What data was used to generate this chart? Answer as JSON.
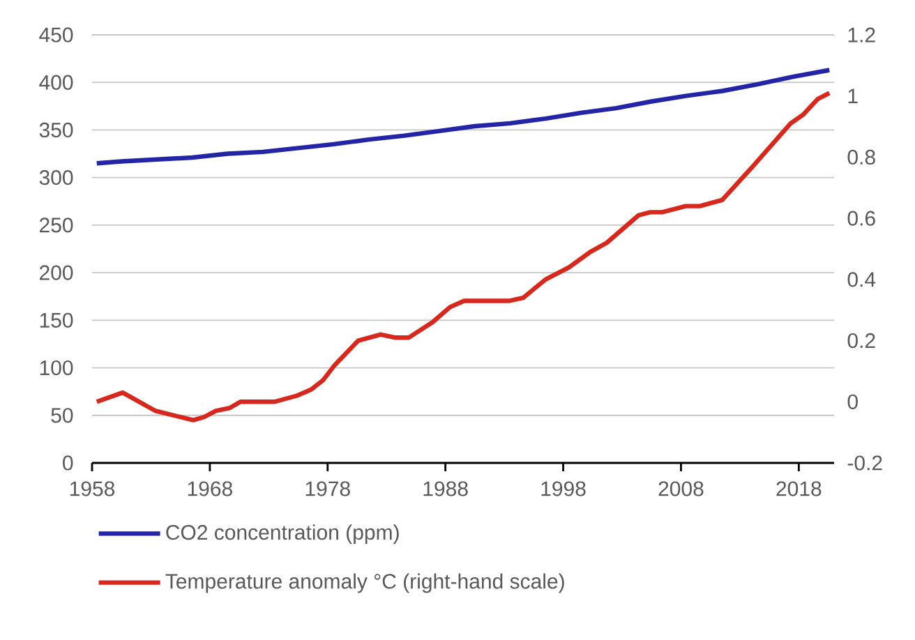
{
  "chart_data": {
    "type": "line",
    "xlim": [
      1958,
      2021
    ],
    "xticks": [
      1958,
      1968,
      1978,
      1988,
      1998,
      2008,
      2018
    ],
    "ylim": [
      0,
      450
    ],
    "yticks": [
      0,
      50,
      100,
      150,
      200,
      250,
      300,
      350,
      400,
      450
    ],
    "y2lim": [
      -0.2,
      1.2
    ],
    "y2ticks": [
      -0.2,
      0,
      0.2,
      0.4,
      0.6,
      0.8,
      1,
      1.2
    ],
    "grid": "y",
    "legend": "bottom",
    "marker": "none",
    "line_style": "solid",
    "series": [
      {
        "name": "CO2 concentration (ppm)",
        "color": "#2424a6",
        "x": [
          1958.4,
          1960.5,
          1963.5,
          1966.5,
          1969.5,
          1972.5,
          1975.5,
          1978.5,
          1981.5,
          1984.5,
          1987.5,
          1990.5,
          1993.5,
          1996.5,
          1999.5,
          2002.5,
          2005.5,
          2008.5,
          2011.5,
          2014.5,
          2017.5,
          2020.6
        ],
        "values": [
          315,
          317,
          319,
          321,
          325,
          327,
          331,
          335,
          340,
          344,
          349,
          354,
          357,
          362,
          368,
          373,
          380,
          386,
          391,
          398,
          406,
          413
        ]
      },
      {
        "name": "Temperature anomaly °C (right-hand scale)",
        "color": "#d7281e",
        "axis": "y2",
        "x": [
          1958.4,
          1960.6,
          1963.4,
          1966.6,
          1967.5,
          1968.5,
          1969.7,
          1970.6,
          1973.5,
          1975.4,
          1976.6,
          1977.6,
          1978.6,
          1980.6,
          1982.5,
          1983.7,
          1984.9,
          1985.7,
          1986.9,
          1988.4,
          1989.6,
          1993.4,
          1994.6,
          1996.5,
          1998.5,
          2000.3,
          2001.7,
          2004.4,
          2005.4,
          2006.4,
          2008.4,
          2009.6,
          2011.5,
          2014.1,
          2015.7,
          2017.3,
          2018.4,
          2019.6,
          2020.6
        ],
        "values": [
          0.0,
          0.03,
          -0.03,
          -0.06,
          -0.05,
          -0.03,
          -0.02,
          0.0,
          0.0,
          0.02,
          0.04,
          0.07,
          0.12,
          0.2,
          0.22,
          0.21,
          0.21,
          0.23,
          0.26,
          0.31,
          0.33,
          0.33,
          0.34,
          0.4,
          0.44,
          0.49,
          0.52,
          0.61,
          0.62,
          0.62,
          0.64,
          0.64,
          0.66,
          0.77,
          0.84,
          0.91,
          0.94,
          0.99,
          1.01
        ]
      }
    ]
  }
}
